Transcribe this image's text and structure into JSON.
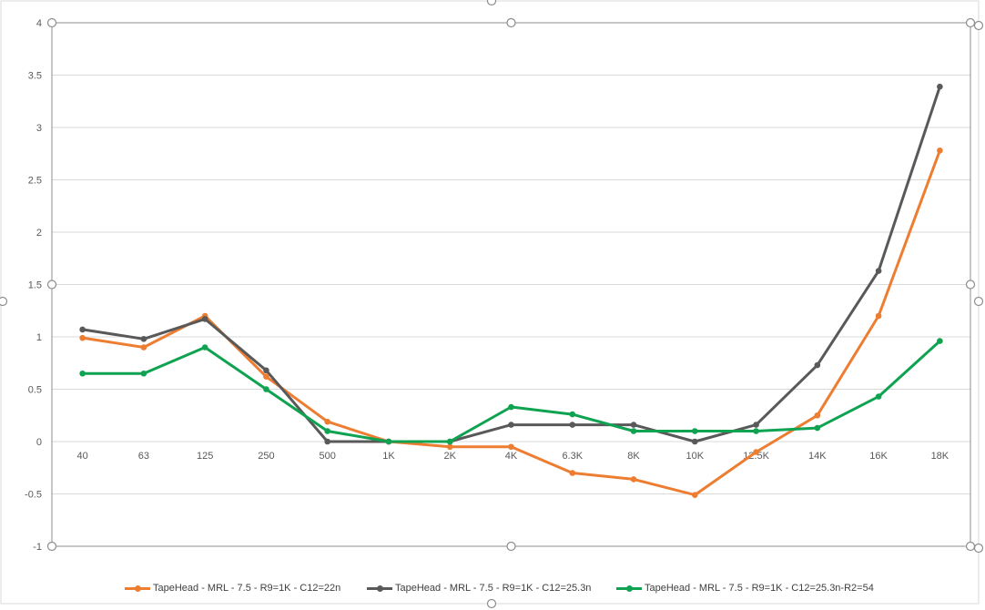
{
  "chart_data": {
    "type": "line",
    "title": "",
    "xlabel": "",
    "ylabel": "",
    "categories": [
      "40",
      "63",
      "125",
      "250",
      "500",
      "1K",
      "2K",
      "4K",
      "6.3K",
      "8K",
      "10K",
      "12.5K",
      "14K",
      "16K",
      "18K"
    ],
    "ylim": [
      -1,
      4
    ],
    "yticks": [
      "-1",
      "-0.5",
      "0",
      "0.5",
      "1",
      "1.5",
      "2",
      "2.5",
      "3",
      "3.5",
      "4"
    ],
    "grid": true,
    "legend_position": "bottom",
    "series": [
      {
        "name": "TapeHead - MRL - 7.5 - R9=1K - C12=22n",
        "color": "#ED7D31",
        "values": [
          0.99,
          0.9,
          1.2,
          0.62,
          0.19,
          0.0,
          -0.05,
          -0.05,
          -0.3,
          -0.36,
          -0.51,
          -0.1,
          0.25,
          1.2,
          2.78
        ]
      },
      {
        "name": "TapeHead - MRL - 7.5 - R9=1K - C12=25.3n",
        "color": "#595959",
        "values": [
          1.07,
          0.98,
          1.17,
          0.68,
          0.0,
          0.0,
          0.0,
          0.16,
          0.16,
          0.16,
          0.0,
          0.16,
          0.73,
          1.63,
          3.39
        ]
      },
      {
        "name": "TapeHead - MRL - 7.5 - R9=1K - C12=25.3n-R2=54",
        "color": "#0FA351",
        "values": [
          0.65,
          0.65,
          0.9,
          0.5,
          0.1,
          0.0,
          0.0,
          0.33,
          0.26,
          0.1,
          0.1,
          0.1,
          0.13,
          0.43,
          0.96
        ]
      }
    ]
  }
}
